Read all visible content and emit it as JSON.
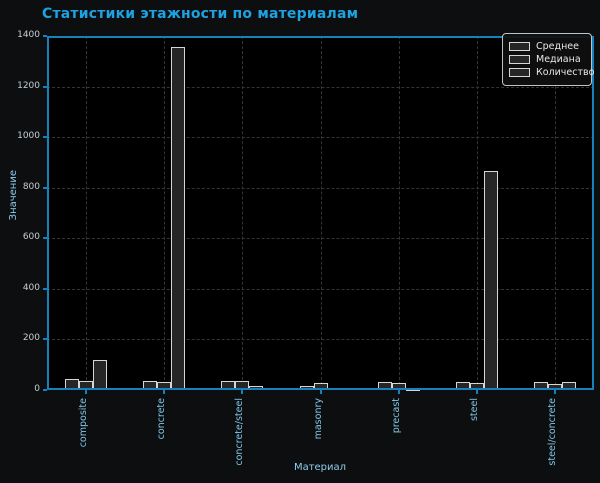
{
  "title": "Статистики этажности по материалам",
  "colors": {
    "accent_title": "#1da2e2",
    "spine": "#1781bd",
    "axes_bg": "#000000",
    "figure_bg": "#0d0e10",
    "grid": "#343434",
    "bar_fill": "#262626",
    "bar_edge": "#d6d6d6",
    "ytick_text": "#c6ced3",
    "xtick_text": "#82c6e8",
    "axis_label_text": "#8fcdec",
    "legend_text": "#e8e8e8",
    "legend_border": "#c2c2c2"
  },
  "chart_data": {
    "type": "bar",
    "title": "Статистики этажности по материалам",
    "xlabel": "Материал",
    "ylabel": "Значение",
    "categories": [
      "composite",
      "concrete",
      "concrete/steel",
      "masonry",
      "precast",
      "steel",
      "steel/concrete"
    ],
    "series": [
      {
        "name": "Среднее",
        "values": [
          44,
          36,
          37,
          14,
          31,
          33,
          33
        ]
      },
      {
        "name": "Медиана",
        "values": [
          36,
          32,
          36,
          26,
          28,
          26,
          24
        ]
      },
      {
        "name": "Количество",
        "values": [
          118,
          1355,
          17,
          6,
          2,
          866,
          33
        ]
      }
    ],
    "ylim": [
      0,
      1400
    ],
    "yticks": [
      0,
      200,
      400,
      600,
      800,
      1000,
      1200,
      1400
    ],
    "grid": true,
    "legend_position": "upper right"
  }
}
